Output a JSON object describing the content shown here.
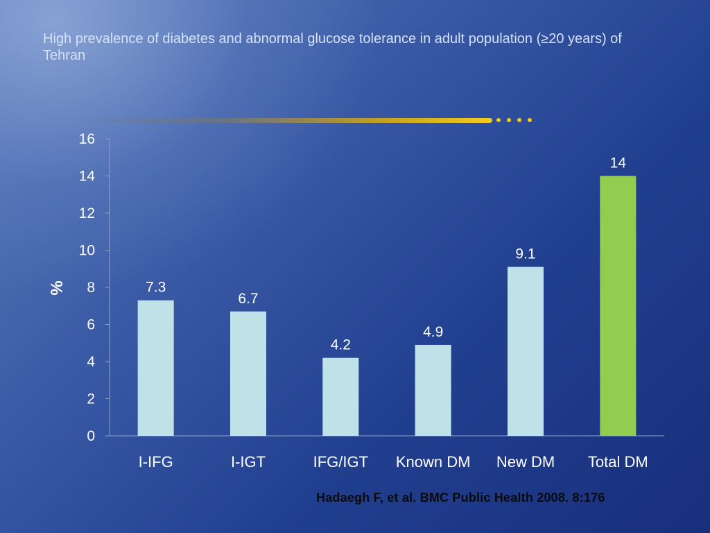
{
  "slide": {
    "title": "High prevalence of diabetes and abnormal glucose tolerance in adult population (≥20 years) of Tehran",
    "source": "Hadaegh F, et al. BMC Public Health 2008. 8:176"
  },
  "colors": {
    "bar_default": "#bfe1e8",
    "bar_highlight": "#92cd50",
    "text": "#ffffff"
  },
  "chart_data": {
    "type": "bar",
    "categories": [
      "I-IFG",
      "I-IGT",
      "IFG/IGT",
      "Known DM",
      "New DM",
      "Total DM"
    ],
    "values": [
      7.3,
      6.7,
      4.2,
      4.9,
      9.1,
      14
    ],
    "data_labels": [
      "7.3",
      "6.7",
      "4.2",
      "4.9",
      "9.1",
      "14"
    ],
    "highlight_category": "Total DM",
    "ylabel": "%",
    "xlabel": "",
    "ylim": [
      0,
      16
    ],
    "yticks": [
      0,
      2,
      4,
      6,
      8,
      10,
      12,
      14,
      16
    ],
    "grid": false,
    "legend": "none"
  }
}
